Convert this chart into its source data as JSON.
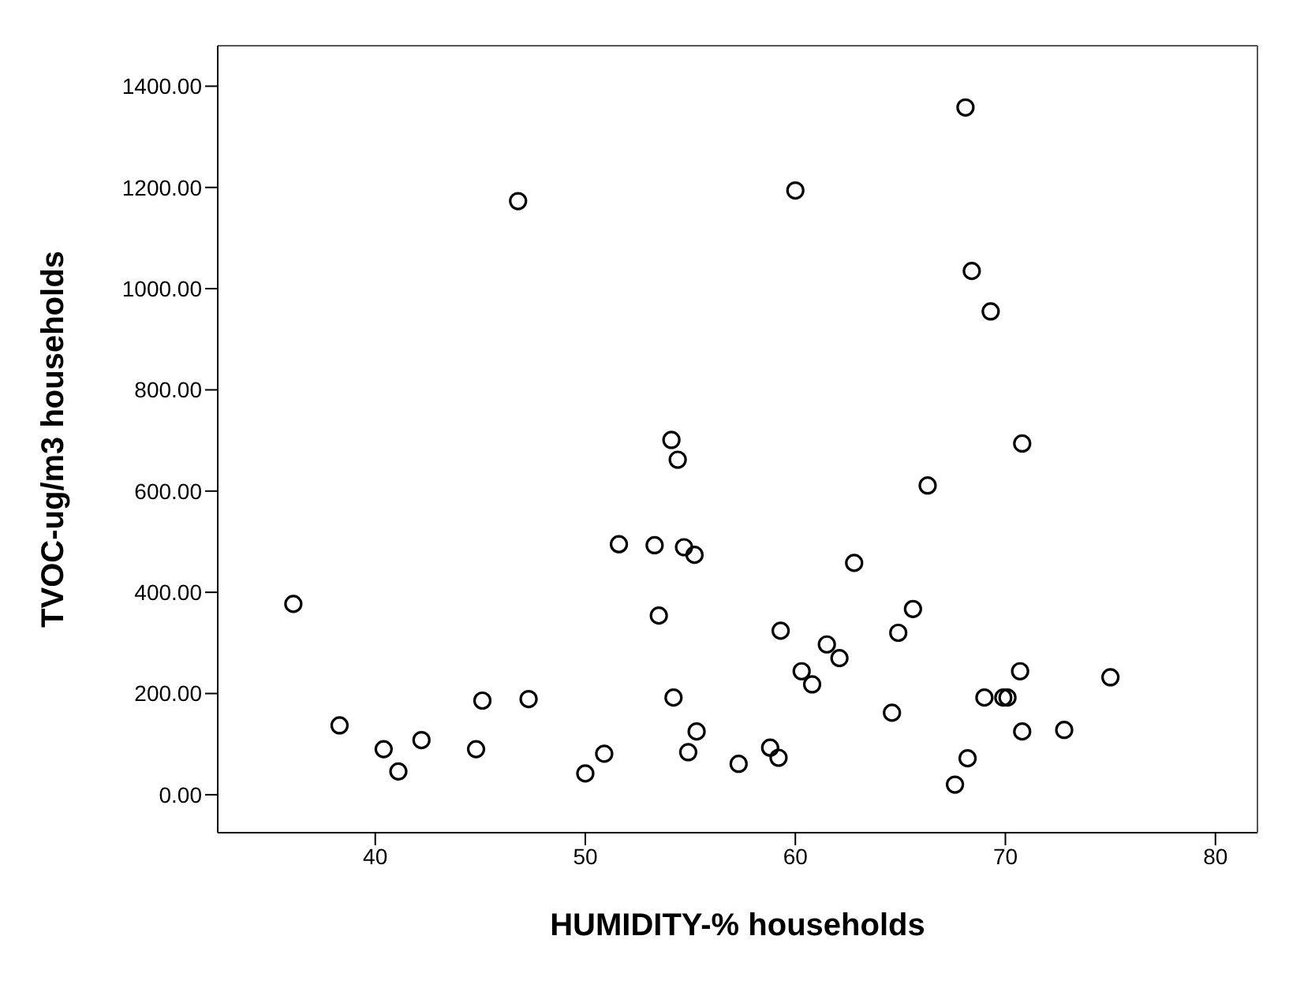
{
  "chart_data": {
    "type": "scatter",
    "xlabel": "HUMIDITY-% households",
    "ylabel": "TVOC-ug/m3 households",
    "xlim": [
      32.5,
      82
    ],
    "xticks": [
      40,
      50,
      60,
      70,
      80
    ],
    "ylim": [
      -75,
      1480
    ],
    "yticks": [
      {
        "value": 0,
        "label": "0.00"
      },
      {
        "value": 200,
        "label": "200.00"
      },
      {
        "value": 400,
        "label": "400.00"
      },
      {
        "value": 600,
        "label": "600.00"
      },
      {
        "value": 800,
        "label": "800.00"
      },
      {
        "value": 1000,
        "label": "1000.00"
      },
      {
        "value": 1200,
        "label": "1200.00"
      },
      {
        "value": 1400,
        "label": "1400.00"
      }
    ],
    "marker": "circle",
    "series": [
      {
        "color": "#000000",
        "x": [
          36.1,
          38.3,
          40.4,
          41.1,
          42.2,
          44.8,
          45.1,
          47.3,
          50.0,
          50.9,
          51.6,
          53.3,
          53.5,
          54.7,
          55.2,
          54.2,
          55.3,
          54.9,
          57.3,
          58.8,
          59.2,
          59.3,
          60.3,
          60.8,
          61.5,
          62.1,
          62.8,
          64.6,
          64.9,
          65.6,
          66.3,
          67.6,
          68.2,
          69.0,
          69.9,
          70.1,
          70.7,
          70.8,
          72.8,
          75.0,
          70.8,
          54.4,
          54.1,
          68.1,
          60.0,
          68.4,
          69.3,
          46.8
        ],
        "values": [
          377,
          137,
          90,
          46,
          108,
          90,
          186,
          189,
          42,
          81,
          495,
          493,
          354,
          489,
          474,
          192,
          125,
          84,
          61,
          93,
          73,
          324,
          244,
          218,
          297,
          270,
          458,
          162,
          320,
          367,
          611,
          20,
          72,
          192,
          192,
          192,
          244,
          125,
          128,
          232,
          694,
          662,
          701,
          1358,
          1194,
          1035,
          955,
          1173
        ]
      }
    ]
  }
}
